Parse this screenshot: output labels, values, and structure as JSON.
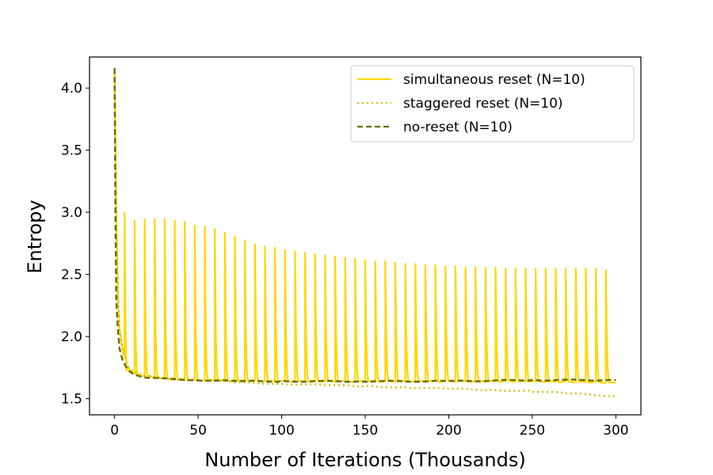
{
  "chart_data": {
    "type": "line",
    "xlabel": "Number of Iterations (Thousands)",
    "ylabel": "Entropy",
    "xlim": [
      -15,
      315
    ],
    "ylim": [
      1.37,
      4.25
    ],
    "xticks": [
      0,
      50,
      100,
      150,
      200,
      250,
      300
    ],
    "yticks": [
      1.5,
      2.0,
      2.5,
      3.0,
      3.5,
      4.0
    ],
    "xtick_labels": [
      "0",
      "50",
      "100",
      "150",
      "200",
      "250",
      "300"
    ],
    "ytick_labels": [
      "1.5",
      "2.0",
      "2.5",
      "3.0",
      "3.5",
      "4.0"
    ],
    "grid": false,
    "legend_position": "top-right",
    "series": [
      {
        "name": "simultaneous reset (N=10)",
        "color": "#FFD700",
        "style": "solid",
        "baseline": [
          [
            0,
            4.12
          ],
          [
            1,
            2.95
          ],
          [
            2,
            2.3
          ],
          [
            3,
            2.05
          ],
          [
            5,
            1.88
          ],
          [
            8,
            1.75
          ],
          [
            12,
            1.7
          ],
          [
            20,
            1.68
          ],
          [
            30,
            1.66
          ],
          [
            50,
            1.65
          ],
          [
            100,
            1.64
          ],
          [
            150,
            1.64
          ],
          [
            200,
            1.64
          ],
          [
            250,
            1.64
          ],
          [
            300,
            1.63
          ]
        ],
        "spike_x": [
          6,
          12,
          18,
          24,
          30,
          36,
          42,
          48,
          54,
          60,
          66,
          72,
          78,
          84,
          90,
          96,
          102,
          108,
          114,
          120,
          126,
          132,
          138,
          144,
          150,
          156,
          162,
          168,
          174,
          180,
          186,
          192,
          198,
          204,
          210,
          216,
          222,
          228,
          234,
          240,
          246,
          252,
          258,
          264,
          270,
          276,
          282,
          288,
          294
        ],
        "spike_y": [
          3.0,
          2.94,
          2.95,
          2.95,
          2.95,
          2.94,
          2.93,
          2.9,
          2.89,
          2.87,
          2.84,
          2.81,
          2.78,
          2.75,
          2.73,
          2.72,
          2.7,
          2.69,
          2.68,
          2.67,
          2.66,
          2.65,
          2.64,
          2.63,
          2.62,
          2.61,
          2.61,
          2.6,
          2.59,
          2.59,
          2.58,
          2.58,
          2.57,
          2.57,
          2.56,
          2.56,
          2.56,
          2.56,
          2.55,
          2.55,
          2.55,
          2.55,
          2.55,
          2.55,
          2.55,
          2.55,
          2.55,
          2.55,
          2.54
        ]
      },
      {
        "name": "staggered reset (N=10)",
        "color": "#C8C000",
        "style": "dotted",
        "x": [
          0,
          1,
          2,
          3,
          5,
          8,
          12,
          20,
          30,
          50,
          75,
          100,
          125,
          150,
          175,
          200,
          225,
          250,
          275,
          300
        ],
        "y": [
          4.12,
          3.0,
          2.35,
          2.05,
          1.88,
          1.76,
          1.71,
          1.68,
          1.66,
          1.65,
          1.63,
          1.62,
          1.61,
          1.6,
          1.59,
          1.58,
          1.57,
          1.56,
          1.54,
          1.52
        ]
      },
      {
        "name": "no-reset (N=10)",
        "color": "#6B6B00",
        "style": "dashed",
        "x": [
          0,
          0.5,
          1,
          2,
          3,
          5,
          8,
          12,
          20,
          30,
          50,
          75,
          100,
          150,
          200,
          250,
          300
        ],
        "y": [
          4.16,
          3.0,
          2.3,
          2.05,
          1.9,
          1.8,
          1.73,
          1.69,
          1.67,
          1.66,
          1.65,
          1.64,
          1.64,
          1.64,
          1.64,
          1.65,
          1.65
        ]
      }
    ]
  }
}
